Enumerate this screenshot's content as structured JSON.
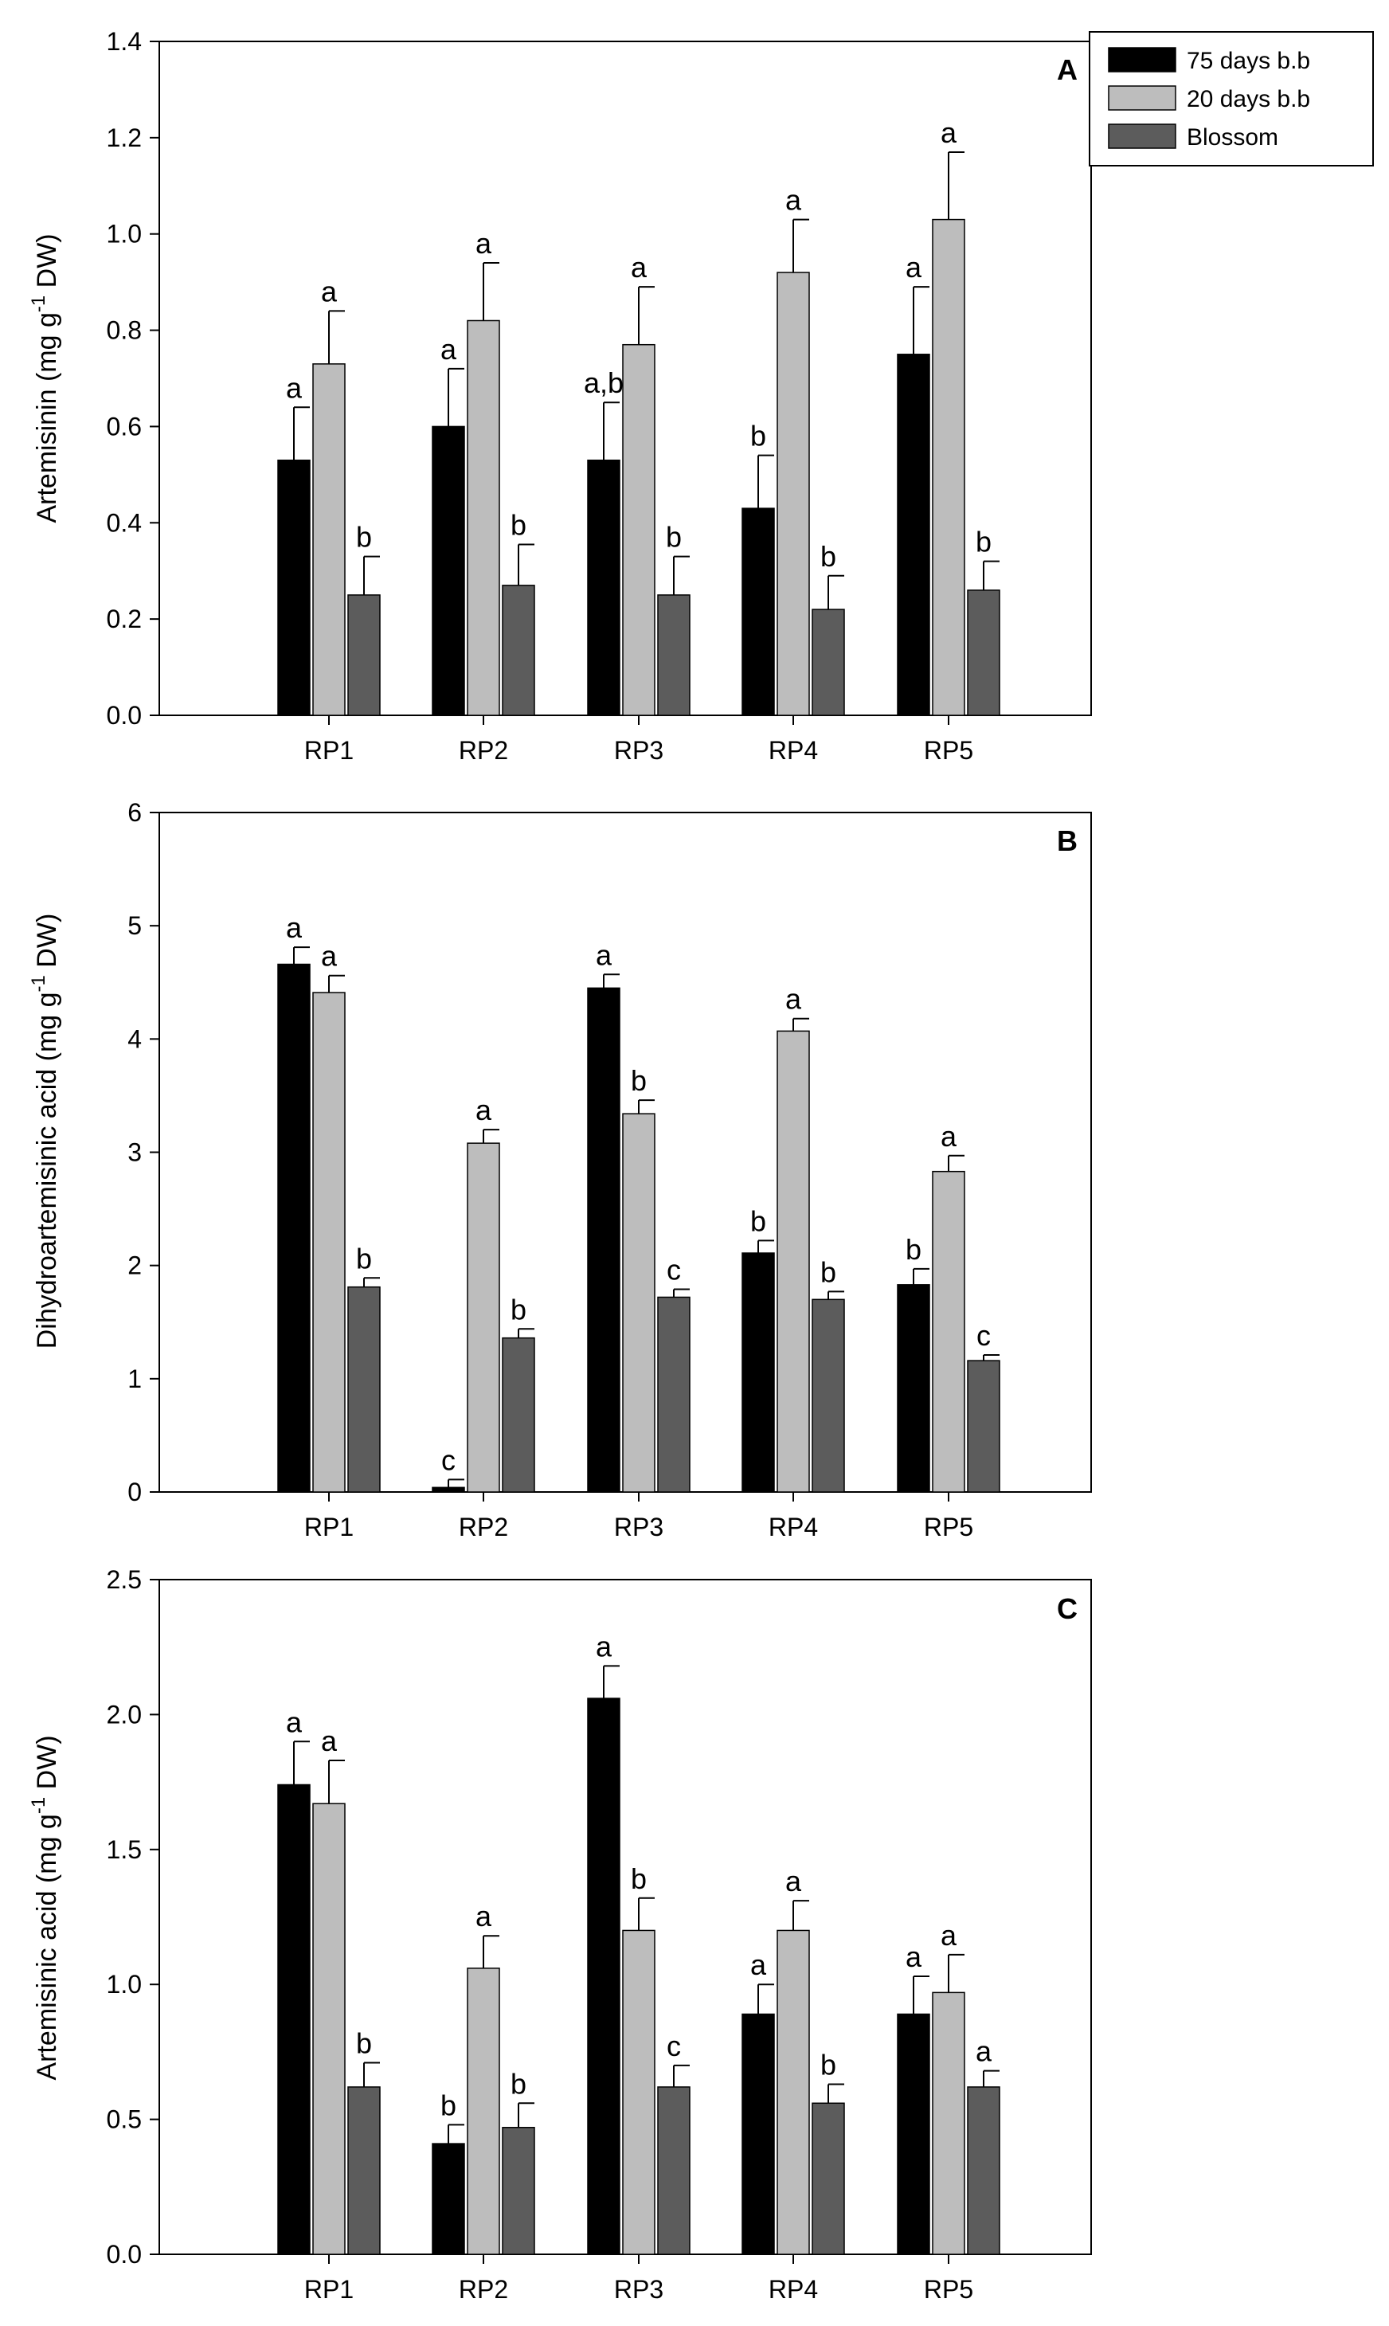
{
  "colors": {
    "75d": "#000000",
    "20d": "#bdbdbd",
    "blossom": "#5c5c5c"
  },
  "legend": [
    {
      "key": "75d",
      "label": "75 days b.b"
    },
    {
      "key": "20d",
      "label": "20 days b.b"
    },
    {
      "key": "blossom",
      "label": "Blossom"
    }
  ],
  "chart_data": [
    {
      "type": "bar",
      "panel": "A",
      "ylabel": {
        "main": "Artemisinin (mg g",
        "sup": "-1",
        "end": " DW)"
      },
      "ylim": [
        0,
        1.4
      ],
      "yticks": [
        "0.0",
        "0.2",
        "0.4",
        "0.6",
        "0.8",
        "1.0",
        "1.2",
        "1.4"
      ],
      "yticks_values": [
        0,
        0.2,
        0.4,
        0.6,
        0.8,
        1.0,
        1.2,
        1.4
      ],
      "categories": [
        "RP1",
        "RP2",
        "RP3",
        "RP4",
        "RP5"
      ],
      "series": [
        {
          "key": "75d",
          "name": "75 days b.b",
          "values": [
            0.53,
            0.6,
            0.53,
            0.43,
            0.75
          ],
          "errors": [
            0.11,
            0.12,
            0.12,
            0.11,
            0.14
          ],
          "letters": [
            "a",
            "a",
            "a,b",
            "b",
            "a"
          ]
        },
        {
          "key": "20d",
          "name": "20 days b.b",
          "values": [
            0.73,
            0.82,
            0.77,
            0.92,
            1.03
          ],
          "errors": [
            0.11,
            0.12,
            0.12,
            0.11,
            0.14
          ],
          "letters": [
            "a",
            "a",
            "a",
            "a",
            "a"
          ]
        },
        {
          "key": "blossom",
          "name": "Blossom",
          "values": [
            0.25,
            0.27,
            0.25,
            0.22,
            0.26
          ],
          "errors": [
            0.08,
            0.085,
            0.08,
            0.07,
            0.06
          ],
          "letters": [
            "b",
            "b",
            "b",
            "b",
            "b"
          ]
        }
      ]
    },
    {
      "type": "bar",
      "panel": "B",
      "ylabel": {
        "main": "Dihydroartemisinic acid (mg g",
        "sup": "-1",
        "end": " DW)"
      },
      "ylim": [
        0,
        6
      ],
      "yticks": [
        "0",
        "1",
        "2",
        "3",
        "4",
        "5",
        "6"
      ],
      "yticks_values": [
        0,
        1,
        2,
        3,
        4,
        5,
        6
      ],
      "categories": [
        "RP1",
        "RP2",
        "RP3",
        "RP4",
        "RP5"
      ],
      "series": [
        {
          "key": "75d",
          "name": "75 days b.b",
          "values": [
            4.66,
            0.04,
            4.45,
            2.11,
            1.83
          ],
          "errors": [
            0.15,
            0.07,
            0.12,
            0.11,
            0.14
          ],
          "letters": [
            "a",
            "c",
            "a",
            "b",
            "b"
          ]
        },
        {
          "key": "20d",
          "name": "20 days b.b",
          "values": [
            4.41,
            3.08,
            3.34,
            4.07,
            2.83
          ],
          "errors": [
            0.15,
            0.12,
            0.12,
            0.11,
            0.14
          ],
          "letters": [
            "a",
            "a",
            "b",
            "a",
            "a"
          ]
        },
        {
          "key": "blossom",
          "name": "Blossom",
          "values": [
            1.81,
            1.36,
            1.72,
            1.7,
            1.16
          ],
          "errors": [
            0.08,
            0.08,
            0.07,
            0.07,
            0.05
          ],
          "letters": [
            "b",
            "b",
            "c",
            "b",
            "c"
          ]
        }
      ]
    },
    {
      "type": "bar",
      "panel": "C",
      "ylabel": {
        "main": "Artemisinic acid (mg g",
        "sup": "-1",
        "end": " DW)"
      },
      "ylim": [
        0,
        2.5
      ],
      "yticks": [
        "0.0",
        "0.5",
        "1.0",
        "1.5",
        "2.0",
        "2.5"
      ],
      "yticks_values": [
        0,
        0.5,
        1.0,
        1.5,
        2.0,
        2.5
      ],
      "categories": [
        "RP1",
        "RP2",
        "RP3",
        "RP4",
        "RP5"
      ],
      "series": [
        {
          "key": "75d",
          "name": "75 days b.b",
          "values": [
            1.74,
            0.41,
            2.06,
            0.89,
            0.89
          ],
          "errors": [
            0.16,
            0.07,
            0.12,
            0.11,
            0.14
          ],
          "letters": [
            "a",
            "b",
            "a",
            "a",
            "a"
          ]
        },
        {
          "key": "20d",
          "name": "20 days b.b",
          "values": [
            1.67,
            1.06,
            1.2,
            1.2,
            0.97
          ],
          "errors": [
            0.16,
            0.12,
            0.12,
            0.11,
            0.14
          ],
          "letters": [
            "a",
            "a",
            "b",
            "a",
            "a"
          ]
        },
        {
          "key": "blossom",
          "name": "Blossom",
          "values": [
            0.62,
            0.47,
            0.62,
            0.56,
            0.62
          ],
          "errors": [
            0.09,
            0.09,
            0.08,
            0.07,
            0.06
          ],
          "letters": [
            "b",
            "b",
            "c",
            "b",
            "a"
          ]
        }
      ]
    }
  ]
}
